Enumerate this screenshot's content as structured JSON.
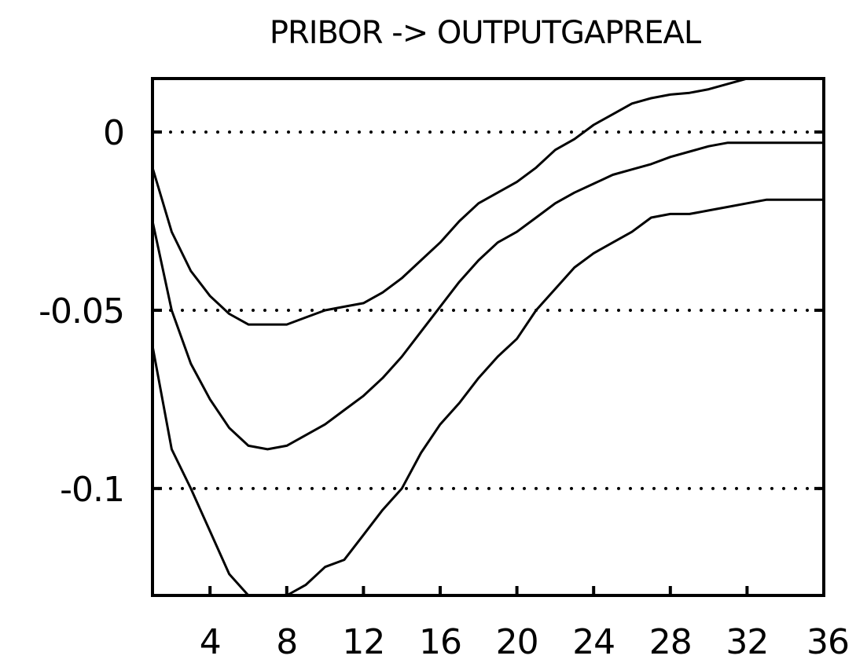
{
  "chart_data": {
    "type": "line",
    "title": "PRIBOR -> OUTPUTGAPREAL",
    "xlabel": "",
    "ylabel": "",
    "xlim": [
      1,
      36
    ],
    "ylim": [
      -0.13,
      0.015
    ],
    "x_ticks": [
      4,
      8,
      12,
      16,
      20,
      24,
      28,
      32,
      36
    ],
    "x_tick_labels": [
      "4",
      "8",
      "12",
      "16",
      "20",
      "24",
      "28",
      "32",
      "36"
    ],
    "y_ticks": [
      0,
      -0.05,
      -0.1
    ],
    "y_tick_labels": [
      "0",
      "-0.05",
      "-0.1"
    ],
    "grid": "horizontal dotted at y ticks",
    "legend": "none",
    "series": [
      {
        "role": "upper-band",
        "x": [
          1,
          2,
          3,
          4,
          5,
          6,
          7,
          8,
          9,
          10,
          11,
          12,
          13,
          14,
          15,
          16,
          17,
          18,
          19,
          20,
          21,
          22,
          23,
          24,
          25,
          26,
          27,
          28,
          29,
          30,
          31,
          32,
          33,
          34,
          35,
          36
        ],
        "values": [
          -0.01,
          -0.028,
          -0.039,
          -0.046,
          -0.051,
          -0.054,
          -0.054,
          -0.054,
          -0.052,
          -0.05,
          -0.049,
          -0.048,
          -0.045,
          -0.041,
          -0.036,
          -0.031,
          -0.025,
          -0.02,
          -0.017,
          -0.014,
          -0.01,
          -0.005,
          -0.002,
          0.002,
          0.005,
          0.008,
          0.0095,
          0.0105,
          0.011,
          0.012,
          0.0135,
          0.015,
          0.016,
          0.017,
          0.0175,
          0.018
        ]
      },
      {
        "role": "median",
        "x": [
          1,
          2,
          3,
          4,
          5,
          6,
          7,
          8,
          9,
          10,
          11,
          12,
          13,
          14,
          15,
          16,
          17,
          18,
          19,
          20,
          21,
          22,
          23,
          24,
          25,
          26,
          27,
          28,
          29,
          30,
          31,
          32,
          33,
          34,
          35,
          36
        ],
        "values": [
          -0.025,
          -0.05,
          -0.065,
          -0.075,
          -0.083,
          -0.088,
          -0.089,
          -0.088,
          -0.085,
          -0.082,
          -0.078,
          -0.074,
          -0.069,
          -0.063,
          -0.056,
          -0.049,
          -0.042,
          -0.036,
          -0.031,
          -0.028,
          -0.024,
          -0.02,
          -0.017,
          -0.0145,
          -0.012,
          -0.0105,
          -0.009,
          -0.007,
          -0.0055,
          -0.004,
          -0.003,
          -0.003,
          -0.003,
          -0.003,
          -0.003,
          -0.003
        ]
      },
      {
        "role": "lower-band",
        "x": [
          1,
          2,
          3,
          4,
          5,
          6,
          7,
          8,
          9,
          10,
          11,
          12,
          13,
          14,
          15,
          16,
          17,
          18,
          19,
          20,
          21,
          22,
          23,
          24,
          25,
          26,
          27,
          28,
          29,
          30,
          31,
          32,
          33,
          34,
          35,
          36
        ],
        "values": [
          -0.06,
          -0.089,
          -0.1,
          -0.112,
          -0.124,
          -0.13,
          -0.134,
          -0.131,
          -0.127,
          -0.122,
          -0.12,
          -0.113,
          -0.106,
          -0.1,
          -0.09,
          -0.082,
          -0.076,
          -0.069,
          -0.063,
          -0.058,
          -0.05,
          -0.044,
          -0.038,
          -0.034,
          -0.031,
          -0.028,
          -0.024,
          -0.023,
          -0.023,
          -0.022,
          -0.021,
          -0.02,
          -0.019,
          -0.019,
          -0.019,
          -0.019
        ]
      }
    ]
  },
  "colors": {
    "line": "#000000",
    "background": "#ffffff"
  }
}
